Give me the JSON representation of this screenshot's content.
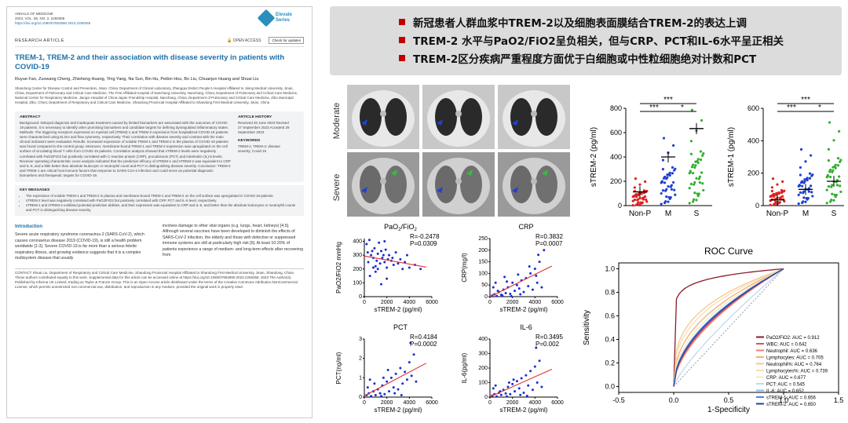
{
  "paper": {
    "journal": "ANNALS OF MEDICINE",
    "journal_line2": "2023, VOL. 55, NO. 2, 2269358",
    "doi": "https://doi.org/10.1080/07853890.2023.2269358",
    "logo": "Elevate Series",
    "article_type": "RESEARCH ARTICLE",
    "open_access": "OPEN ACCESS",
    "check_updates": "Check for updates",
    "title": "TREM-1, TREM-2 and their association with disease severity in patients with COVID-19",
    "authors": "Ruyue Fan, Zuowang Cheng, Zhisheng Huang, Ying Yang, Na Sun, Bin Hu, Peibin Hou, Bo Liu, Chuanjun Huang and Shuai Liu",
    "affiliations": "Shandong Center for Disease Control and Prevention, Jinan, China; Department of Clinical Laboratory, Zhangqiu District People's Hospital Affiliated to Jining Medical University, Jinan, China; Department of Pulmonary and Critical Care Medicine, The First Affiliated Hospital of Nanchang University, Nanchang, China; Department of Pulmonary and Critical Care Medicine, National Center for Respiratory Medicine, Jiangxi Hospital of China-Japan Friendship Hospital, Nanchang, China; Department of Pulmonary and Critical Care Medicine, Zibo Municipal Hospital, Zibo, China; Department of Respiratory and Critical Care Medicine, Shandong Provincial Hospital Affiliated to Shandong First Medical University, Jinan, China",
    "abstract_head": "ABSTRACT",
    "abstract": "Background: Delayed diagnosis and inadequate treatment caused by limited biomarkers are associated with the outcomes of COVID-19 patients. It is necessary to identify other promising biomarkers and candidate targets for defining dysregulated inflammatory states. Methods: The triggering receptors expressed on myeloid cell (TREM)-1 and TREM-2 expression from hospitalized COVID-19 patients were characterized using ELISA and flow cytometry, respectively. Their correlation with disease severity and contrast with the main clinical indicators were evaluated. Results: Increased expression of soluble TREM-1 and TREM-2 in the plasma of COVID-19 patients was found compared to the control group. Moreover, membrane-bound TREM-1 and TREM-2 expression was upregulated on the cell surface of circulating blood T cells from COVID-19 patients. Correlation analysis showed that sTREM-2 levels were negatively correlated with PaO2/FiO2 but positively correlated with C-reactive protein (CRP), procalcitonin (PCT) and interleukin (IL)-6 levels. Receiver operating characteristic curve analysis indicated that the predictive efficacy of sTREM-1 and sTREM-2 was equivalent to CRP and IL-6, and a little better than absolute leukocyte or neutrophil count and PCT in distinguishing disease severity. Conclusion: TREM-2 and TREM-1 are critical host immune factors that response to SARS-CoV-2 infection and could serve as potential diagnostic biomarkers and therapeutic targets for COVID-19.",
    "history_head": "ARTICLE HISTORY",
    "history": "Received 20 June 2023 Revised 27 September 2023 Accepted 29 September 2023",
    "keywords_head": "KEYWORDS",
    "keywords": "TREM-1; TREM-2; disease severity; Covid-19",
    "key_head": "KEY MESSAGES",
    "key_messages": [
      "The expression of soluble TREM-1 and TREM-2 in plasma and membrane-bound TREM-1 and TREM-2 on the cell surface was upregulated in COVID-19 patients.",
      "sTREM-2 level was negatively correlated with PaO2/FiO2 but positively correlated with CRP, PCT and IL-6 level, respectively.",
      "sTREM-1 and sTREM-2 exhibited potential predictive abilities, and their expression was equivalent to CRP and IL-6, and better than the absolute leukocytes or neutrophil counts and PCT in distinguishing disease severity."
    ],
    "intro_head": "Introduction",
    "intro_col1": "Severe acute respiratory syndrome coronavirus-2 (SARS-CoV-2), which causes coronavirus disease 2019 (COVID-19), is still a health problem worldwide [1-3]. Severe COVID-19 is far more than a serious febrile respiratory illness, and growing evidence suggests that it is a complex multisystem disease that usually",
    "intro_col2": "involves damage to other vital organs (e.g. lungs, heart, kidneys) [4,5]. Although several vaccines have been developed to diminish the effects of SARS-CoV-2 infection, the elderly and those with defective or suppressed immune systems are still at particularly high risk [6]. At least 10-20% of patients experience a range of medium- and long-term effects after recovering from",
    "contact": "CONTACT Shuai Liu, Department of Respiratory and Critical Care Medicine, Shandong Provincial Hospital Affiliated to Shandong First Medical University, Jinan, Shandong, China",
    "footnotes": "These authors contributed equally to this work. Supplemental data for this article can be accessed online at https://doi.org/10.1080/07853890.2023.2269358. 2023 The Author(s). Published by Informa UK Limited, trading as Taylor & Francis Group. This is an Open Access article distributed under the terms of the Creative Commons Attribution-NonCommercial License, which permits unrestricted non-commercial use, distribution, and reproduction in any medium, provided the original work is properly cited."
  },
  "banner": {
    "lines": [
      "新冠患者人群血浆中TREM-2以及细胞表面膜结合TREM-2的表达上调",
      "TREM-2 水平与PaO2/FiO2呈负相关，但与CRP、PCT和IL-6水平呈正相关",
      "TREM-2区分疾病严重程度方面优于白细胞或中性粒细胞绝对计数和PCT"
    ]
  },
  "ct": {
    "moderate": "Moderate",
    "severe": "Severe"
  },
  "box_plots": [
    {
      "ylabel": "sTREM-2 (pg/ml)",
      "yticks": [
        "0",
        "200",
        "400",
        "600",
        "800"
      ],
      "groups": [
        "Non-P",
        "M",
        "S"
      ],
      "sig": [
        "***",
        "***",
        "*"
      ]
    },
    {
      "ylabel": "sTREM-1 (pg/ml)",
      "yticks": [
        "0",
        "200",
        "400",
        "600"
      ],
      "groups": [
        "Non-P",
        "M",
        "S"
      ],
      "sig": [
        "***",
        "***",
        "*"
      ]
    }
  ],
  "chart_data": [
    {
      "type": "scatter",
      "title": "PaO2/FiO2",
      "title_main": "PaO",
      "sub1": "2",
      "slash": "/FiO",
      "sub2": "2",
      "ylabel": "PaO2/FiO2 mmHg",
      "xlabel": "sTREM-2 (pg/ml)",
      "r": "R=-0.2478",
      "p": "P=0.0309",
      "xticks": [
        "0",
        "2000",
        "4000",
        "6000"
      ],
      "yticks": [
        "0",
        "100",
        "200",
        "300",
        "400"
      ],
      "xlim": [
        0,
        6000
      ],
      "ylim": [
        0,
        420
      ],
      "points": [
        [
          200,
          380
        ],
        [
          350,
          250
        ],
        [
          450,
          410
        ],
        [
          600,
          300
        ],
        [
          700,
          330
        ],
        [
          800,
          280
        ],
        [
          900,
          350
        ],
        [
          1000,
          220
        ],
        [
          1100,
          260
        ],
        [
          1200,
          310
        ],
        [
          1300,
          390
        ],
        [
          1400,
          240
        ],
        [
          1500,
          330
        ],
        [
          1600,
          280
        ],
        [
          1700,
          300
        ],
        [
          1800,
          250
        ],
        [
          1900,
          340
        ],
        [
          2000,
          210
        ],
        [
          2100,
          270
        ],
        [
          2200,
          300
        ],
        [
          2400,
          260
        ],
        [
          2600,
          230
        ],
        [
          2800,
          320
        ],
        [
          3000,
          240
        ],
        [
          3200,
          270
        ],
        [
          3400,
          200
        ],
        [
          3600,
          250
        ],
        [
          4000,
          210
        ],
        [
          4500,
          230
        ],
        [
          5000,
          200
        ],
        [
          500,
          150
        ],
        [
          1000,
          180
        ],
        [
          1500,
          90
        ],
        [
          2000,
          130
        ],
        [
          300,
          320
        ],
        [
          1200,
          200
        ],
        [
          800,
          210
        ],
        [
          2500,
          280
        ],
        [
          3800,
          300
        ],
        [
          1800,
          400
        ]
      ]
    },
    {
      "type": "scatter",
      "title": "CRP",
      "ylabel": "CRP(mg/l)",
      "xlabel": "sTREM-2 (pg/ml)",
      "r": "R=0.3832",
      "p": "P=0.0007",
      "xticks": [
        "0",
        "2000",
        "4000",
        "6000"
      ],
      "yticks": [
        "0",
        "50",
        "100",
        "150",
        "200",
        "250"
      ],
      "xlim": [
        0,
        6000
      ],
      "ylim": [
        0,
        250
      ],
      "points": [
        [
          200,
          5
        ],
        [
          400,
          10
        ],
        [
          600,
          3
        ],
        [
          800,
          20
        ],
        [
          1000,
          8
        ],
        [
          1200,
          30
        ],
        [
          1400,
          15
        ],
        [
          1600,
          40
        ],
        [
          1800,
          12
        ],
        [
          2000,
          60
        ],
        [
          2200,
          25
        ],
        [
          2400,
          50
        ],
        [
          2600,
          35
        ],
        [
          2800,
          70
        ],
        [
          3000,
          20
        ],
        [
          3200,
          80
        ],
        [
          3400,
          45
        ],
        [
          3600,
          100
        ],
        [
          3800,
          30
        ],
        [
          4000,
          120
        ],
        [
          4200,
          60
        ],
        [
          4400,
          150
        ],
        [
          4600,
          40
        ],
        [
          4800,
          200
        ],
        [
          300,
          40
        ],
        [
          700,
          25
        ],
        [
          1500,
          65
        ],
        [
          2500,
          95
        ],
        [
          3500,
          130
        ],
        [
          1100,
          5
        ],
        [
          1900,
          2
        ],
        [
          2700,
          10
        ],
        [
          4100,
          90
        ],
        [
          4300,
          180
        ],
        [
          500,
          60
        ],
        [
          1300,
          85
        ]
      ]
    },
    {
      "type": "scatter",
      "title": "PCT",
      "ylabel": "PCT(ng/ml)",
      "xlabel": "sTREM-2 (pg/ml)",
      "r": "R=0.4184",
      "p": "P=0.0002",
      "xticks": [
        "0",
        "2000",
        "4000",
        "6000"
      ],
      "yticks": [
        "0",
        "1",
        "2",
        "3"
      ],
      "xlim": [
        0,
        6000
      ],
      "ylim": [
        0,
        3
      ],
      "points": [
        [
          200,
          0.1
        ],
        [
          400,
          0.2
        ],
        [
          600,
          0.05
        ],
        [
          800,
          0.3
        ],
        [
          1000,
          0.1
        ],
        [
          1200,
          0.4
        ],
        [
          1400,
          0.2
        ],
        [
          1600,
          0.6
        ],
        [
          1800,
          0.15
        ],
        [
          2000,
          0.8
        ],
        [
          2200,
          0.3
        ],
        [
          2400,
          1.0
        ],
        [
          2600,
          0.5
        ],
        [
          2800,
          1.2
        ],
        [
          3000,
          0.4
        ],
        [
          3200,
          1.5
        ],
        [
          3400,
          0.7
        ],
        [
          3600,
          1.3
        ],
        [
          3800,
          0.9
        ],
        [
          4000,
          1.8
        ],
        [
          4200,
          1.1
        ],
        [
          4400,
          2.2
        ],
        [
          4600,
          0.8
        ],
        [
          300,
          0.5
        ],
        [
          900,
          0.7
        ],
        [
          1700,
          1.0
        ],
        [
          2700,
          0.2
        ],
        [
          3300,
          0.1
        ],
        [
          4100,
          2.8
        ],
        [
          1500,
          0.05
        ],
        [
          500,
          0.9
        ],
        [
          2100,
          1.4
        ]
      ]
    },
    {
      "type": "scatter",
      "title": "IL-6",
      "ylabel": "IL-6(pg/ml)",
      "xlabel": "sTREM-2 (pg/ml)",
      "r": "R=0.3495",
      "p": "P=0.002",
      "xticks": [
        "0",
        "2000",
        "4000",
        "6000"
      ],
      "yticks": [
        "0",
        "100",
        "200",
        "300",
        "400"
      ],
      "xlim": [
        0,
        6000
      ],
      "ylim": [
        0,
        400
      ],
      "points": [
        [
          200,
          10
        ],
        [
          400,
          20
        ],
        [
          600,
          5
        ],
        [
          800,
          30
        ],
        [
          1000,
          15
        ],
        [
          1200,
          50
        ],
        [
          1400,
          25
        ],
        [
          1600,
          70
        ],
        [
          1800,
          20
        ],
        [
          2000,
          90
        ],
        [
          2200,
          40
        ],
        [
          2400,
          110
        ],
        [
          2600,
          60
        ],
        [
          2800,
          130
        ],
        [
          3000,
          30
        ],
        [
          3200,
          150
        ],
        [
          3400,
          80
        ],
        [
          3600,
          180
        ],
        [
          3800,
          50
        ],
        [
          4000,
          210
        ],
        [
          4200,
          100
        ],
        [
          4400,
          250
        ],
        [
          4600,
          70
        ],
        [
          300,
          60
        ],
        [
          900,
          40
        ],
        [
          1700,
          100
        ],
        [
          2700,
          15
        ],
        [
          3300,
          8
        ],
        [
          4100,
          340
        ],
        [
          1500,
          5
        ],
        [
          500,
          80
        ],
        [
          2100,
          120
        ]
      ]
    },
    {
      "type": "line",
      "title": "ROC Curve",
      "xlabel": "1-Specificity",
      "ylabel": "Sensitivity",
      "xticks": [
        "-0.5",
        "0.0",
        "0.5",
        "1.0",
        "1.5"
      ],
      "yticks": [
        "0.0",
        "0.2",
        "0.4",
        "0.6",
        "0.8",
        "1.0"
      ],
      "xlim": [
        -0.5,
        1.5
      ],
      "ylim": [
        -0.05,
        1.05
      ],
      "series": [
        {
          "name": "PaO2/FiO2: AUC = 0.912",
          "color": "#8b1a2b",
          "k": 0.08
        },
        {
          "name": "WBC: AUC = 0.642",
          "color": "#e05060",
          "k": 0.55
        },
        {
          "name": "Neutrophil: AUC = 0.636",
          "color": "#f08070",
          "k": 0.57
        },
        {
          "name": "Lymphocytes: AUC = 0.705",
          "color": "#f3b070",
          "k": 0.42
        },
        {
          "name": "Neutrophil%: AUC = 0.764",
          "color": "#f5c890",
          "k": 0.32
        },
        {
          "name": "Lymphocytes%: AUC = 0.739",
          "color": "#f7dcb0",
          "k": 0.36
        },
        {
          "name": "CRP: AUC = 0.677",
          "color": "#f2e8c0",
          "k": 0.47
        },
        {
          "name": "PCT: AUC = 0.545",
          "color": "#c0d8f0",
          "k": 0.8
        },
        {
          "name": "IL-6: AUC = 0.652",
          "color": "#90b8e8",
          "k": 0.52
        },
        {
          "name": "sTREM-1: AUC = 0.656",
          "color": "#5080d0",
          "k": 0.51
        },
        {
          "name": "sTREM-2: AUC = 0.650",
          "color": "#2040a0",
          "k": 0.53
        }
      ]
    }
  ]
}
